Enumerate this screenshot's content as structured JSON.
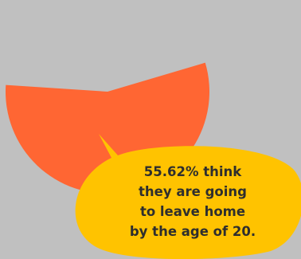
{
  "chart_data": {
    "type": "pie",
    "slices": [
      {
        "value": 55.62,
        "color": "#ff6633"
      }
    ],
    "title": "",
    "legend": "none"
  },
  "callout": {
    "line1": "55.62% think",
    "line2": "they are going",
    "line3": "to leave home",
    "line4": "by the age of 20.",
    "color": "#ffc300"
  },
  "background_color": "#c0c0c0"
}
